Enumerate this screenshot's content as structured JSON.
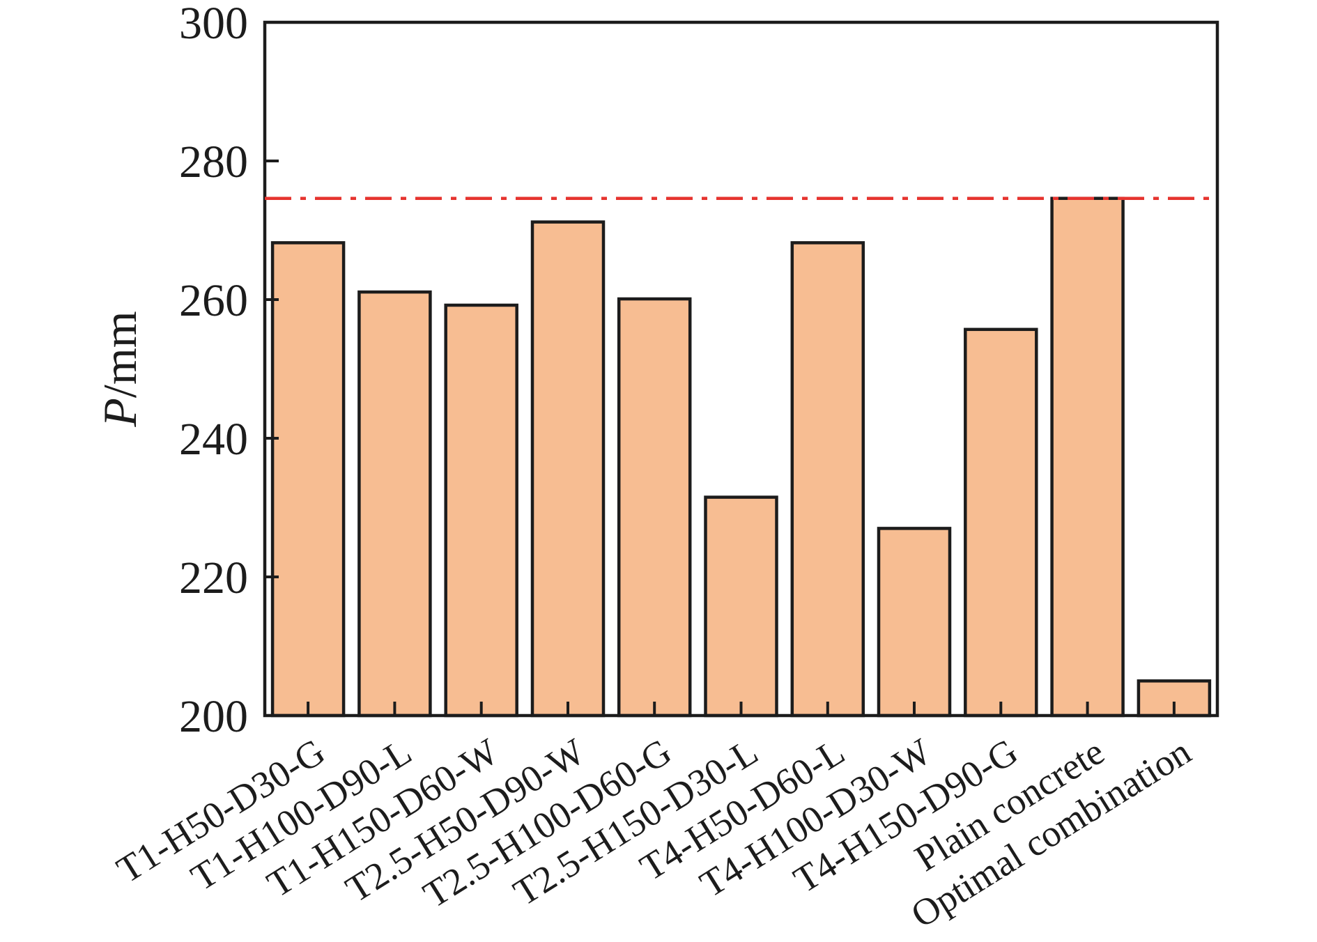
{
  "figure": {
    "background": "#FFFFFF"
  },
  "chart_data": {
    "type": "bar",
    "categories": [
      "T1-H50-D30-G",
      "T1-H100-D90-L",
      "T1-H150-D60-W",
      "T2.5-H50-D90-W",
      "T2.5-H100-D60-G",
      "T2.5-H150-D30-L",
      "T4-H50-D60-L",
      "T4-H100-D30-W",
      "T4-H150-D90-G",
      "Plain concrete",
      "Optimal combination"
    ],
    "values": [
      268.2,
      261.1,
      259.2,
      271.2,
      260.1,
      231.5,
      268.2,
      227.0,
      255.7,
      274.6,
      205.0
    ],
    "ylabel": {
      "italic": "P",
      "rest": "/mm",
      "display": "P/mm"
    },
    "ylim": [
      200,
      300
    ],
    "yticks": [
      200,
      220,
      240,
      260,
      280,
      300
    ],
    "ytick_labels": [
      "200",
      "220",
      "240",
      "260",
      "280",
      "300"
    ],
    "grid": false,
    "legend_position": "none",
    "bar_style": {
      "fill": "#F7BD92",
      "edge": "#1C1C1C"
    },
    "axis_color": "#1C1C1C",
    "reference_line": {
      "value": 274.6,
      "color": "#E6342F",
      "style": "dash-dot"
    }
  }
}
